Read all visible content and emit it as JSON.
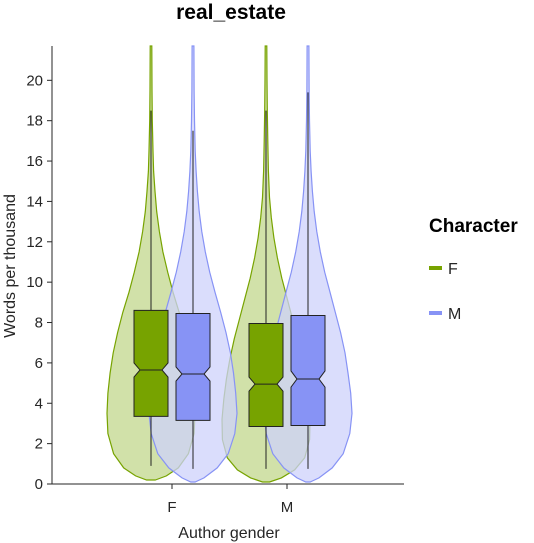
{
  "chart_data": {
    "type": "violin",
    "title": "real_estate",
    "xlabel": "Author gender",
    "ylabel": "Words per thousand",
    "ylim": [
      0,
      21.7
    ],
    "yticks": [
      0,
      2,
      4,
      6,
      8,
      10,
      12,
      14,
      16,
      18,
      20
    ],
    "categories": [
      "F",
      "M"
    ],
    "legend": {
      "title": "Character",
      "position": "right",
      "entries": [
        {
          "label": "F",
          "color": "#77a300"
        },
        {
          "label": "M",
          "color": "#8793f5"
        }
      ]
    },
    "series": [
      {
        "name": "F",
        "color": "#77a300",
        "fill": "#c2d78c",
        "groups": [
          {
            "category": "F",
            "q1": 3.35,
            "median": 5.65,
            "q3": 8.6,
            "whisker_low": 0.9,
            "whisker_high": 18.5,
            "notch_low": 5.3,
            "notch_high": 6.0,
            "violin": [
              [
                0.2,
                0.1
              ],
              [
                0.4,
                0.35
              ],
              [
                0.8,
                0.62
              ],
              [
                1.5,
                0.85
              ],
              [
                2.5,
                0.98
              ],
              [
                3.5,
                1.0
              ],
              [
                4.5,
                0.98
              ],
              [
                5.5,
                0.93
              ],
              [
                6.5,
                0.86
              ],
              [
                7.5,
                0.76
              ],
              [
                8.5,
                0.64
              ],
              [
                9.5,
                0.5
              ],
              [
                10.5,
                0.38
              ],
              [
                11.5,
                0.27
              ],
              [
                12.5,
                0.19
              ],
              [
                13.5,
                0.13
              ],
              [
                14.5,
                0.09
              ],
              [
                15.5,
                0.06
              ],
              [
                16.5,
                0.045
              ],
              [
                18,
                0.03
              ],
              [
                19.5,
                0.022
              ],
              [
                21.7,
                0.018
              ]
            ]
          },
          {
            "category": "M",
            "q1": 2.85,
            "median": 4.95,
            "q3": 7.95,
            "whisker_low": 0.75,
            "whisker_high": 18.5,
            "notch_low": 4.6,
            "notch_high": 5.3,
            "violin": [
              [
                0.1,
                0.08
              ],
              [
                0.3,
                0.35
              ],
              [
                0.7,
                0.65
              ],
              [
                1.3,
                0.88
              ],
              [
                2.2,
                0.99
              ],
              [
                3.2,
                1.0
              ],
              [
                4.2,
                0.96
              ],
              [
                5.2,
                0.9
              ],
              [
                6.2,
                0.82
              ],
              [
                7.2,
                0.72
              ],
              [
                8.2,
                0.6
              ],
              [
                9.2,
                0.48
              ],
              [
                10.2,
                0.36
              ],
              [
                11.2,
                0.26
              ],
              [
                12.2,
                0.18
              ],
              [
                13.2,
                0.12
              ],
              [
                14.2,
                0.08
              ],
              [
                15.5,
                0.055
              ],
              [
                17,
                0.04
              ],
              [
                18.5,
                0.03
              ],
              [
                20,
                0.022
              ],
              [
                21.7,
                0.018
              ]
            ]
          }
        ]
      },
      {
        "name": "M",
        "color": "#8793f5",
        "fill": "#cdd2fb",
        "groups": [
          {
            "category": "F",
            "q1": 3.15,
            "median": 5.45,
            "q3": 8.45,
            "whisker_low": 0.75,
            "whisker_high": 17.5,
            "notch_low": 5.1,
            "notch_high": 5.8,
            "violin": [
              [
                0.1,
                0.05
              ],
              [
                0.3,
                0.25
              ],
              [
                0.8,
                0.55
              ],
              [
                1.5,
                0.8
              ],
              [
                2.5,
                0.95
              ],
              [
                3.5,
                1.0
              ],
              [
                4.5,
                0.97
              ],
              [
                5.5,
                0.92
              ],
              [
                6.5,
                0.85
              ],
              [
                7.5,
                0.75
              ],
              [
                8.5,
                0.63
              ],
              [
                9.5,
                0.5
              ],
              [
                10.5,
                0.38
              ],
              [
                11.5,
                0.28
              ],
              [
                12.5,
                0.2
              ],
              [
                13.5,
                0.14
              ],
              [
                14.5,
                0.1
              ],
              [
                15.5,
                0.07
              ],
              [
                16.5,
                0.05
              ],
              [
                18,
                0.035
              ],
              [
                19.5,
                0.025
              ],
              [
                21.7,
                0.02
              ]
            ]
          },
          {
            "category": "M",
            "q1": 2.9,
            "median": 5.2,
            "q3": 8.35,
            "whisker_low": 0.75,
            "whisker_high": 19.4,
            "notch_low": 4.8,
            "notch_high": 5.6,
            "violin": [
              [
                0.1,
                0.05
              ],
              [
                0.3,
                0.25
              ],
              [
                0.8,
                0.55
              ],
              [
                1.5,
                0.8
              ],
              [
                2.5,
                0.95
              ],
              [
                3.5,
                1.0
              ],
              [
                4.5,
                0.97
              ],
              [
                5.5,
                0.91
              ],
              [
                6.5,
                0.84
              ],
              [
                7.5,
                0.74
              ],
              [
                8.5,
                0.62
              ],
              [
                9.5,
                0.5
              ],
              [
                10.5,
                0.38
              ],
              [
                11.5,
                0.28
              ],
              [
                12.5,
                0.2
              ],
              [
                13.5,
                0.14
              ],
              [
                14.5,
                0.1
              ],
              [
                15.5,
                0.07
              ],
              [
                16.5,
                0.05
              ],
              [
                18,
                0.035
              ],
              [
                19.5,
                0.025
              ],
              [
                21.7,
                0.02
              ]
            ]
          }
        ]
      }
    ]
  }
}
